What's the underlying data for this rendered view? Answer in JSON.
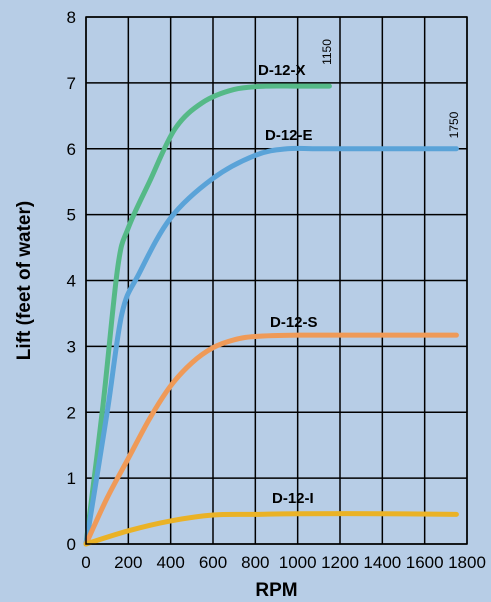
{
  "chart_data": {
    "type": "line",
    "xlabel": "RPM",
    "ylabel": "Lift (feet of water)",
    "xlim": [
      0,
      1800
    ],
    "ylim": [
      0,
      8
    ],
    "xticks": [
      0,
      200,
      400,
      600,
      800,
      1000,
      1200,
      1400,
      1600,
      1800
    ],
    "yticks": [
      0,
      1,
      2,
      3,
      4,
      5,
      6,
      7,
      8
    ],
    "grid": true,
    "series": [
      {
        "name": "D-12-X",
        "color": "#55b987",
        "max_rpm_label": "1150",
        "x": [
          0,
          80,
          150,
          200,
          300,
          420,
          550,
          700,
          850,
          1000,
          1150
        ],
        "y": [
          0,
          2.1,
          4.2,
          4.8,
          5.5,
          6.3,
          6.7,
          6.9,
          6.95,
          6.95,
          6.95
        ]
      },
      {
        "name": "D-12-E",
        "color": "#5aa3d8",
        "max_rpm_label": "1750",
        "x": [
          0,
          100,
          170,
          250,
          400,
          600,
          800,
          950,
          1100,
          1400,
          1750
        ],
        "y": [
          0,
          2.0,
          3.5,
          4.1,
          4.95,
          5.55,
          5.9,
          6.0,
          6.0,
          6.0,
          6.0
        ]
      },
      {
        "name": "D-12-S",
        "color": "#ef9a58",
        "x": [
          0,
          100,
          200,
          300,
          400,
          500,
          600,
          700,
          800,
          1000,
          1300,
          1750
        ],
        "y": [
          0,
          0.7,
          1.3,
          1.9,
          2.4,
          2.75,
          2.98,
          3.1,
          3.15,
          3.17,
          3.17,
          3.17
        ]
      },
      {
        "name": "D-12-I",
        "color": "#eab226",
        "x": [
          0,
          200,
          400,
          600,
          800,
          1000,
          1400,
          1750
        ],
        "y": [
          0,
          0.2,
          0.35,
          0.44,
          0.45,
          0.46,
          0.46,
          0.45
        ]
      }
    ]
  }
}
